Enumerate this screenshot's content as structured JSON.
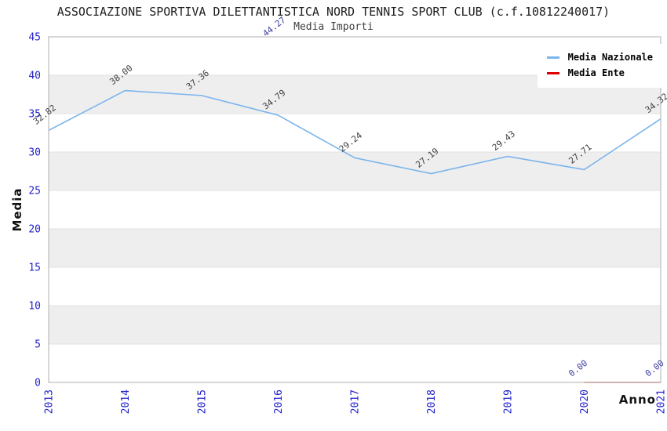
{
  "chart_data": {
    "type": "line",
    "title": "ASSOCIAZIONE SPORTIVA DILETTANTISTICA NORD TENNIS SPORT CLUB (c.f.10812240017)",
    "subtitle": "Media Importi",
    "xlabel": "Anno",
    "ylabel": "Media",
    "ylim": [
      0,
      45
    ],
    "yticks": [
      0,
      5,
      10,
      15,
      20,
      25,
      30,
      35,
      40,
      45
    ],
    "categories": [
      "2013",
      "2014",
      "2015",
      "2016",
      "2017",
      "2018",
      "2019",
      "2020",
      "2021"
    ],
    "series": [
      {
        "name": "Media Nazionale",
        "color": "#7cb5ec",
        "label_color": "#404040",
        "values": [
          32.82,
          38.0,
          37.36,
          34.79,
          29.24,
          27.19,
          29.43,
          27.71,
          34.32
        ]
      },
      {
        "name": "Media Ente",
        "color": "#e10000",
        "label_color": "#3d3d9e",
        "values": [
          null,
          null,
          null,
          44.27,
          null,
          null,
          null,
          0.0,
          0.0
        ]
      }
    ],
    "legend_position": "top-right",
    "grid": true,
    "band_colors": [
      "#ffffff",
      "#eeeeee"
    ],
    "gridline_color": "#e2e2e2",
    "border_color": "#c6c6c6",
    "tick_color": "#2222cc"
  }
}
